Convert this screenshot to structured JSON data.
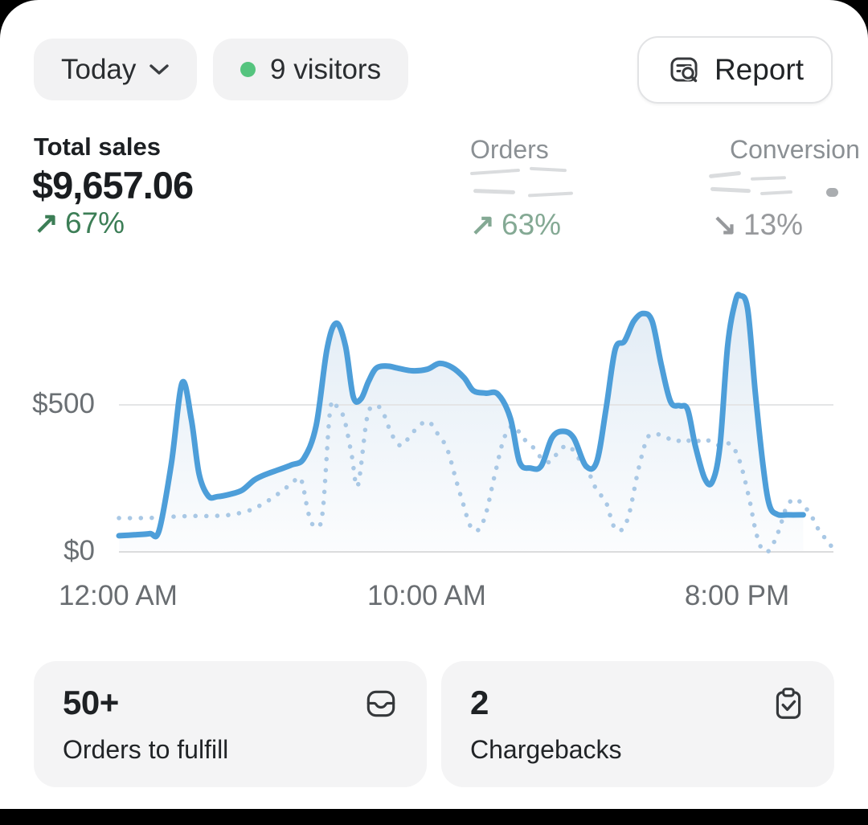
{
  "header": {
    "date_range_label": "Today",
    "visitors_badge": "9 visitors",
    "report_label": "Report"
  },
  "stats": {
    "total_sales": {
      "label": "Total sales",
      "value": "$9,657.06",
      "arrow": "↗",
      "trend": "67%"
    },
    "orders": {
      "label": "Orders",
      "value_redacted": true,
      "arrow": "↗",
      "trend": "63%"
    },
    "conversion": {
      "label": "Conversion",
      "value_redacted": true,
      "arrow": "↘",
      "trend": "13%"
    }
  },
  "chart_data": {
    "type": "line",
    "title": "Total sales over time (Today vs comparison)",
    "x_unit": "hour_of_day",
    "xlim": [
      0,
      24
    ],
    "ylim": [
      0,
      900
    ],
    "grid": "horizontal",
    "legend": "none",
    "yticks": [
      {
        "label": "$500",
        "value": 500
      },
      {
        "label": "$0",
        "value": 0
      }
    ],
    "xticks": [
      {
        "label": "12:00 AM",
        "hour": 0
      },
      {
        "label": "10:00 AM",
        "hour": 10
      },
      {
        "label": "8:00 PM",
        "hour": 20
      }
    ],
    "series": [
      {
        "name": "solid",
        "style": "solid",
        "points": [
          [
            0,
            55
          ],
          [
            0.5,
            58
          ],
          [
            1,
            62
          ],
          [
            1.3,
            72
          ],
          [
            1.7,
            300
          ],
          [
            2.05,
            575
          ],
          [
            2.35,
            450
          ],
          [
            2.6,
            265
          ],
          [
            2.9,
            190
          ],
          [
            3.2,
            188
          ],
          [
            3.6,
            196
          ],
          [
            4,
            210
          ],
          [
            4.4,
            245
          ],
          [
            4.8,
            265
          ],
          [
            5.2,
            280
          ],
          [
            5.6,
            296
          ],
          [
            6,
            318
          ],
          [
            6.4,
            430
          ],
          [
            6.75,
            690
          ],
          [
            7.05,
            778
          ],
          [
            7.35,
            700
          ],
          [
            7.6,
            528
          ],
          [
            7.85,
            520
          ],
          [
            8.1,
            580
          ],
          [
            8.35,
            625
          ],
          [
            8.7,
            632
          ],
          [
            9,
            626
          ],
          [
            9.5,
            616
          ],
          [
            10,
            621
          ],
          [
            10.4,
            641
          ],
          [
            10.8,
            628
          ],
          [
            11.2,
            592
          ],
          [
            11.5,
            548
          ],
          [
            11.9,
            540
          ],
          [
            12.3,
            536
          ],
          [
            12.7,
            455
          ],
          [
            13,
            305
          ],
          [
            13.35,
            285
          ],
          [
            13.7,
            292
          ],
          [
            14.05,
            388
          ],
          [
            14.4,
            410
          ],
          [
            14.75,
            388
          ],
          [
            15.15,
            292
          ],
          [
            15.5,
            306
          ],
          [
            15.8,
            484
          ],
          [
            16.1,
            688
          ],
          [
            16.4,
            716
          ],
          [
            16.7,
            784
          ],
          [
            17,
            811
          ],
          [
            17.3,
            784
          ],
          [
            17.6,
            634
          ],
          [
            17.9,
            510
          ],
          [
            18.2,
            497
          ],
          [
            18.45,
            484
          ],
          [
            18.7,
            361
          ],
          [
            19,
            251
          ],
          [
            19.25,
            238
          ],
          [
            19.5,
            361
          ],
          [
            19.75,
            702
          ],
          [
            20,
            852
          ],
          [
            20.15,
            872
          ],
          [
            20.4,
            825
          ],
          [
            20.65,
            538
          ],
          [
            20.9,
            292
          ],
          [
            21.1,
            160
          ],
          [
            21.35,
            128
          ],
          [
            21.7,
            126
          ],
          [
            22.2,
            126
          ]
        ]
      },
      {
        "name": "dotted",
        "style": "dotted",
        "points": [
          [
            0,
            115
          ],
          [
            0.6,
            115
          ],
          [
            1.2,
            116
          ],
          [
            1.8,
            120
          ],
          [
            2.4,
            122
          ],
          [
            3,
            122
          ],
          [
            3.6,
            126
          ],
          [
            4.2,
            140
          ],
          [
            4.7,
            165
          ],
          [
            5.2,
            200
          ],
          [
            5.6,
            232
          ],
          [
            5.9,
            248
          ],
          [
            6.15,
            130
          ],
          [
            6.35,
            88
          ],
          [
            6.6,
            128
          ],
          [
            6.85,
            480
          ],
          [
            7.05,
            497
          ],
          [
            7.3,
            455
          ],
          [
            7.55,
            330
          ],
          [
            7.75,
            225
          ],
          [
            8.05,
            456
          ],
          [
            8.3,
            497
          ],
          [
            8.55,
            478
          ],
          [
            8.85,
            400
          ],
          [
            9.15,
            361
          ],
          [
            9.45,
            395
          ],
          [
            9.75,
            430
          ],
          [
            10.05,
            443
          ],
          [
            10.35,
            400
          ],
          [
            10.65,
            350
          ],
          [
            10.95,
            240
          ],
          [
            11.15,
            170
          ],
          [
            11.4,
            88
          ],
          [
            11.65,
            74
          ],
          [
            11.9,
            128
          ],
          [
            12.2,
            265
          ],
          [
            12.5,
            388
          ],
          [
            12.8,
            429
          ],
          [
            13.1,
            388
          ],
          [
            13.4,
            360
          ],
          [
            13.7,
            320
          ],
          [
            14,
            306
          ],
          [
            14.3,
            347
          ],
          [
            14.6,
            360
          ],
          [
            14.9,
            320
          ],
          [
            15.2,
            279
          ],
          [
            15.5,
            210
          ],
          [
            15.8,
            170
          ],
          [
            16.05,
            88
          ],
          [
            16.3,
            74
          ],
          [
            16.55,
            128
          ],
          [
            16.85,
            279
          ],
          [
            17.15,
            388
          ],
          [
            17.45,
            400
          ],
          [
            17.75,
            390
          ],
          [
            18.05,
            375
          ],
          [
            18.35,
            385
          ],
          [
            18.65,
            370
          ],
          [
            18.95,
            385
          ],
          [
            19.25,
            372
          ],
          [
            19.55,
            360
          ],
          [
            19.85,
            366
          ],
          [
            20.15,
            305
          ],
          [
            20.45,
            180
          ],
          [
            20.65,
            75
          ],
          [
            20.85,
            12
          ],
          [
            21.1,
            5
          ],
          [
            21.4,
            70
          ],
          [
            21.65,
            150
          ],
          [
            21.9,
            180
          ],
          [
            22.15,
            165
          ],
          [
            22.45,
            125
          ],
          [
            22.75,
            66
          ],
          [
            23.0,
            38
          ],
          [
            23.15,
            11
          ]
        ]
      }
    ]
  },
  "cards": [
    {
      "value": "50+",
      "label": "Orders to fulfill",
      "icon": "inbox-icon"
    },
    {
      "value": "2",
      "label": "Chargebacks",
      "icon": "clipboard-check-icon"
    }
  ],
  "colors": {
    "sales_line": "#4d9ed9",
    "comparison_line": "#a9c8e5",
    "positive_green": "#3c7e56",
    "muted_green": "#84a994",
    "neutral_gray": "#97999c",
    "live_dot_green": "#55c47e"
  }
}
